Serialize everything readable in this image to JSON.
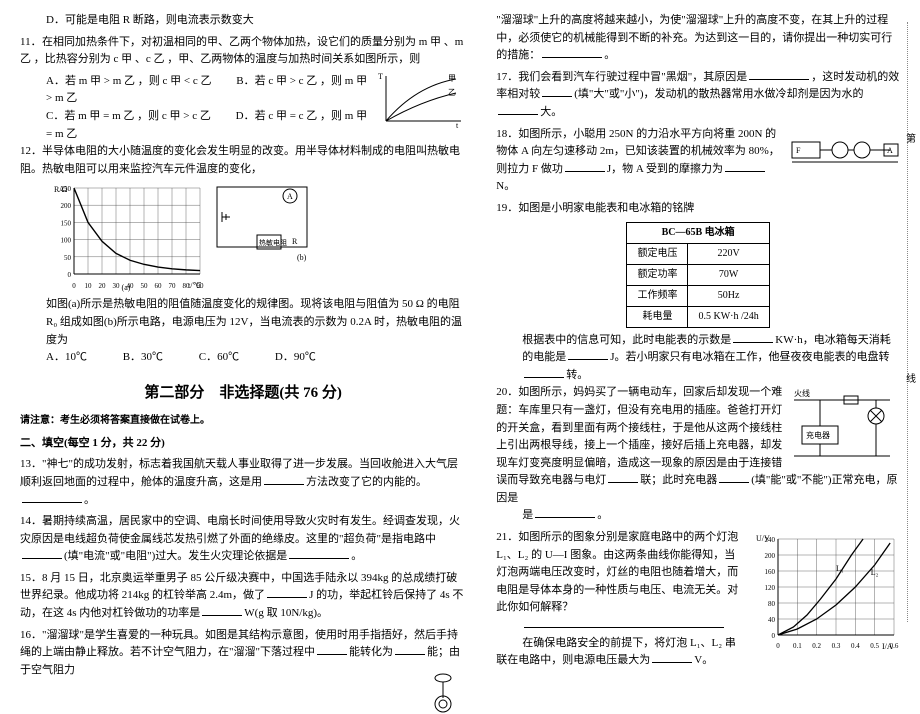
{
  "left": {
    "q10d": "D．可能是电阻 R 断路，则电流表示数变大",
    "q11": {
      "stem": "在相同加热条件下，对初温相同的甲、乙两个物体加热，设它们的质量分别为 m 甲 、m 乙 ，比热容分别为 c 甲 、c 乙 ，甲、乙两物体的温度与加热时间关系如图所示，则",
      "A": "A．若 m 甲 > m 乙 ，则 c 甲 < c 乙",
      "B": "B．若 c 甲 > c 乙 ，则 m 甲 > m 乙",
      "C": "C．若 m 甲 = m 乙 ，则 c 甲 > c 乙",
      "D": "D．若 c 甲 = c 乙 ，则 m 甲 = m 乙"
    },
    "q12": {
      "stem_a": "半导体电阻的大小随温度的变化会发生明显的改变。用半导体材料制成的电阻叫热敏电阻。热敏电阻可以用来监控汽车元件温度的变化，",
      "stem_b": "如图(a)所示是热敏电阻的阻值随温度变化的规律图。现将该电阻与阻值为 50 Ω 的电阻 R₀ 组成如图(b)所示电路，电源电压为 12V，当电流表的示数为 0.2A 时，热敏电阻的温度为",
      "A": "A．10℃",
      "B": "B．30℃",
      "C": "C．60℃",
      "D": "D．90℃",
      "chart": {
        "x_label": "t/℃",
        "y_label": "R/Ω",
        "x_ticks": [
          0,
          10,
          20,
          30,
          40,
          50,
          60,
          70,
          80,
          90
        ],
        "y_ticks": [
          0,
          50,
          100,
          150,
          200,
          250
        ],
        "curve_points": [
          [
            0,
            250
          ],
          [
            10,
            150
          ],
          [
            20,
            95
          ],
          [
            30,
            60
          ],
          [
            40,
            40
          ],
          [
            50,
            28
          ],
          [
            60,
            20
          ],
          [
            70,
            15
          ],
          [
            80,
            12
          ],
          [
            90,
            10
          ]
        ],
        "grid_color": "#444",
        "curve_color": "#000",
        "bg_color": "#ffffff"
      },
      "circuit": {
        "box_label_b": "(b)",
        "box_label_a": "(a)",
        "labels": [
          "A",
          "R",
          "热敏电阻"
        ]
      }
    },
    "part2_title": "第二部分　非选择题(共 76 分)",
    "notice": "请注意：考生必须将答案直接做在试卷上。",
    "fill_title": "二、填空(每空 1 分，共 22 分)",
    "q13": "\"神七\"的成功发射，标志着我国航天载人事业取得了进一步发展。当回收舱进入大气层顺利返回地面的过程中，舱体的温度升高，这是用",
    "q13b": "方法改变了它的内能的。",
    "q14": "暑期持续高温，居民家中的空调、电扇长时间使用导致火灾时有发生。经调查发现，火灾原因是电线超负荷使金属线芯发热引燃了外面的绝缘皮。这里的\"超负荷\"是指电路中",
    "q14b": "(填\"电流\"或\"电阻\")过大。发生火灾理论依据是",
    "q15": "8 月 15 日，北京奥运举重男子 85 公斤级决赛中，中国选手陆永以 394kg 的总成绩打破世界纪录。他成功将 214kg 的杠铃举高 2.4m，做了",
    "q15b": "J 的功，举起杠铃后保持了 4s 不动，在这 4s 内他对杠铃做功的功率是",
    "q15c": "W(g 取 10N/kg)。",
    "q16": "\"溜溜球\"是学生喜爱的一种玩具。如图是其结构示意图，使用时用手指捂好，然后手持绳的上端由静止释放。若不计空气阻力，在\"溜溜\"下落过程中",
    "q16b": "能转化为",
    "q16c": "能；由于空气阻力"
  },
  "right": {
    "q16d": "\"溜溜球\"上升的高度将越来越小，为使\"溜溜球\"上升的高度不变，在其上升的过程中，必须使它的机械能得到不断的补充。为达到这一目的，请你提出一种切实可行的措施：",
    "q17a": "我们会看到汽车行驶过程中冒\"黑烟\"，其原因是",
    "q17b": "，这时发动机的效率相对较",
    "q17c": "(填\"大\"或\"小\")，发动机的散热器常用水做冷却剂是因为水的",
    "q17d": "大。",
    "q18a": "如图所示，小聪用 250N 的力沿水平方向将重 200N 的物体 A 向左匀速移动 2m，已知该装置的机械效率为 80%，则拉力 F 做功",
    "q18b": "J，物 A 受到的摩擦力为",
    "q18c": "N。",
    "q19a": "如图是小明家电能表和电冰箱的铭牌",
    "spec": {
      "title": "BC—65B 电冰箱",
      "rows": [
        [
          "额定电压",
          "220V"
        ],
        [
          "额定功率",
          "70W"
        ],
        [
          "工作频率",
          "50Hz"
        ],
        [
          "耗电量",
          "0.5 KW·h /24h"
        ]
      ]
    },
    "q19b": "根据表中的信息可知，此时电能表的示数是",
    "q19c": "KW·h，电冰箱每天消耗的电能是",
    "q19d": "J。若小明家只有电冰箱在工作，他昼夜夜电能表的电盘转",
    "q19e": "转。",
    "q20a": "如图所示，妈妈买了一辆电动车，回家后却发现一个难题：车库里只有一盏灯，但没有充电用的插座。爸爸打开灯的开关盒，看到里面有两个接线柱，于是他从这两个接线柱上引出两根导线，接上一个插座，接好后插上充电器，却发现车灯变亮度明显偏暗，造成这一现象的原因是由于连接错误而导致充电器与电灯",
    "q20b": "联；此时充电器",
    "q20c": "(填\"能\"或\"不能\")正常充电，原因是",
    "q20label_a": "火线",
    "q20label_b": "充电器",
    "q21a": "如图所示的图象分别是家庭电路中的两个灯泡 L₁、L₂ 的 U—I 图象。由这两条曲线你能得知，当灯泡两端电压改变时，灯丝的电阻也随着增大，而电阻是导体本身的一种性质与电压、电流无关。对此你如何解释？",
    "q21b": "在确保电路安全的前提下，将灯泡 L₁、L₂ 串联在电路中，则电源电压最大为",
    "q21c": "V。",
    "chart21": {
      "x_label": "I/A",
      "y_label": "U/V",
      "x_ticks": [
        0,
        0.1,
        0.2,
        0.3,
        0.4,
        0.5,
        0.6
      ],
      "y_ticks": [
        0,
        40,
        80,
        120,
        160,
        200,
        240
      ],
      "l1": [
        [
          0,
          0
        ],
        [
          0.08,
          20
        ],
        [
          0.15,
          50
        ],
        [
          0.22,
          90
        ],
        [
          0.3,
          140
        ],
        [
          0.38,
          200
        ],
        [
          0.44,
          240
        ]
      ],
      "l2": [
        [
          0,
          0
        ],
        [
          0.1,
          15
        ],
        [
          0.2,
          40
        ],
        [
          0.3,
          75
        ],
        [
          0.4,
          120
        ],
        [
          0.5,
          175
        ],
        [
          0.58,
          230
        ]
      ],
      "labels": {
        "l1": "L₁",
        "l2": "L₂"
      },
      "grid_color": "#444",
      "curve_color": "#000",
      "bg": "#fff"
    }
  }
}
